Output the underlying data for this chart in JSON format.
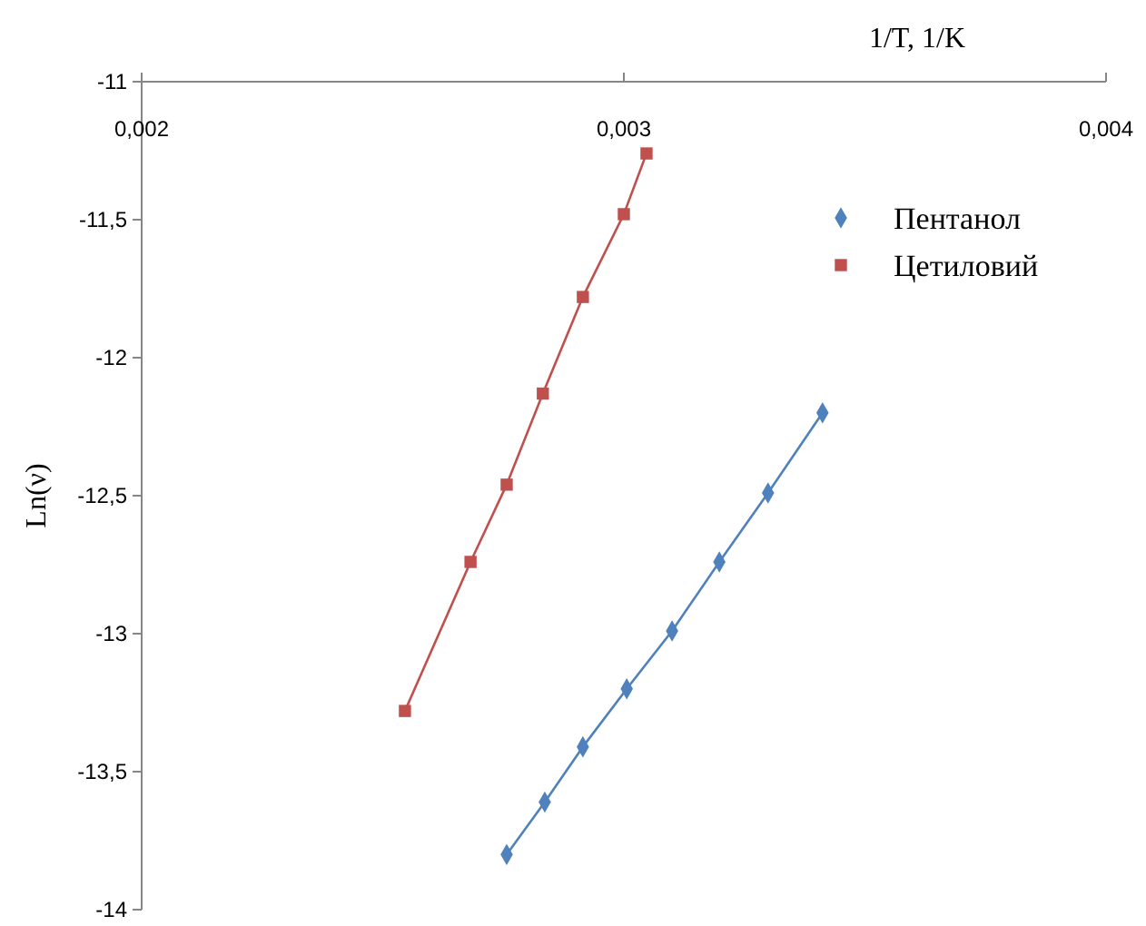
{
  "chart_data": {
    "type": "line",
    "xlabel": "1/T, 1/K",
    "ylabel": "Ln(ν)",
    "xlim": [
      0.002,
      0.004
    ],
    "xticks": [
      {
        "value": 0.002,
        "label": "0,002"
      },
      {
        "value": 0.003,
        "label": "0,003"
      },
      {
        "value": 0.004,
        "label": "0,004"
      }
    ],
    "ylim": [
      -14,
      -11
    ],
    "yticks": [
      {
        "value": -14,
        "label": "-14"
      },
      {
        "value": -13.5,
        "label": "-13,5"
      },
      {
        "value": -13,
        "label": "-13"
      },
      {
        "value": -12.5,
        "label": "-12,5"
      },
      {
        "value": -12,
        "label": "-12"
      },
      {
        "value": -11.5,
        "label": "-11,5"
      },
      {
        "value": -11,
        "label": "-11"
      }
    ],
    "grid": false,
    "legend": "top right",
    "series": [
      {
        "name": "Пентанол",
        "color": "#4f81bd",
        "marker": "diamond",
        "x": [
          0.002757,
          0.002836,
          0.002915,
          0.003006,
          0.0031,
          0.003198,
          0.003299,
          0.003412
        ],
        "values": [
          -13.8,
          -13.61,
          -13.41,
          -13.2,
          -12.99,
          -12.74,
          -12.49,
          -12.2
        ]
      },
      {
        "name": "Цетиловий",
        "color": "#c0504d",
        "marker": "square",
        "x": [
          0.002546,
          0.002682,
          0.002757,
          0.002832,
          0.002915,
          0.003,
          0.003047
        ],
        "values": [
          -13.28,
          -12.74,
          -12.46,
          -12.13,
          -11.78,
          -11.48,
          -11.26
        ]
      }
    ]
  }
}
